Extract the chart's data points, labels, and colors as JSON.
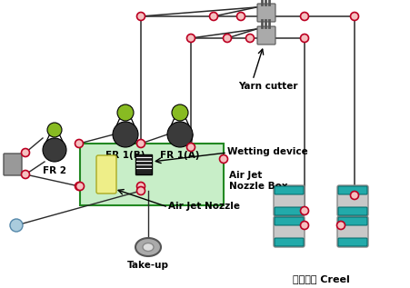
{
  "bg_color": "#ffffff",
  "line_color": "#2a2a2a",
  "guide_fc": "#f5c0c0",
  "guide_ec": "#bb0022",
  "roller_dark": "#3a3a3a",
  "roller_green": "#88bb22",
  "roller_light": "#c8c8c8",
  "creel_teal": "#22aaaa",
  "box_green": "#c8eec8",
  "nozzle_yellow": "#eeee88",
  "labels": {
    "FR2": "FR 2",
    "FR1B": "FR 1(B)",
    "FR1A": "FR 1(A)",
    "yarn_cutter": "Yarn cutter",
    "wetting": "Wetting device",
    "air_jet_box": "Air Jet\nNozzle Box",
    "air_jet_nozzle": "Air Jet Nozzle",
    "takeup": "Take-up",
    "creel": "원사공급 Creel"
  }
}
